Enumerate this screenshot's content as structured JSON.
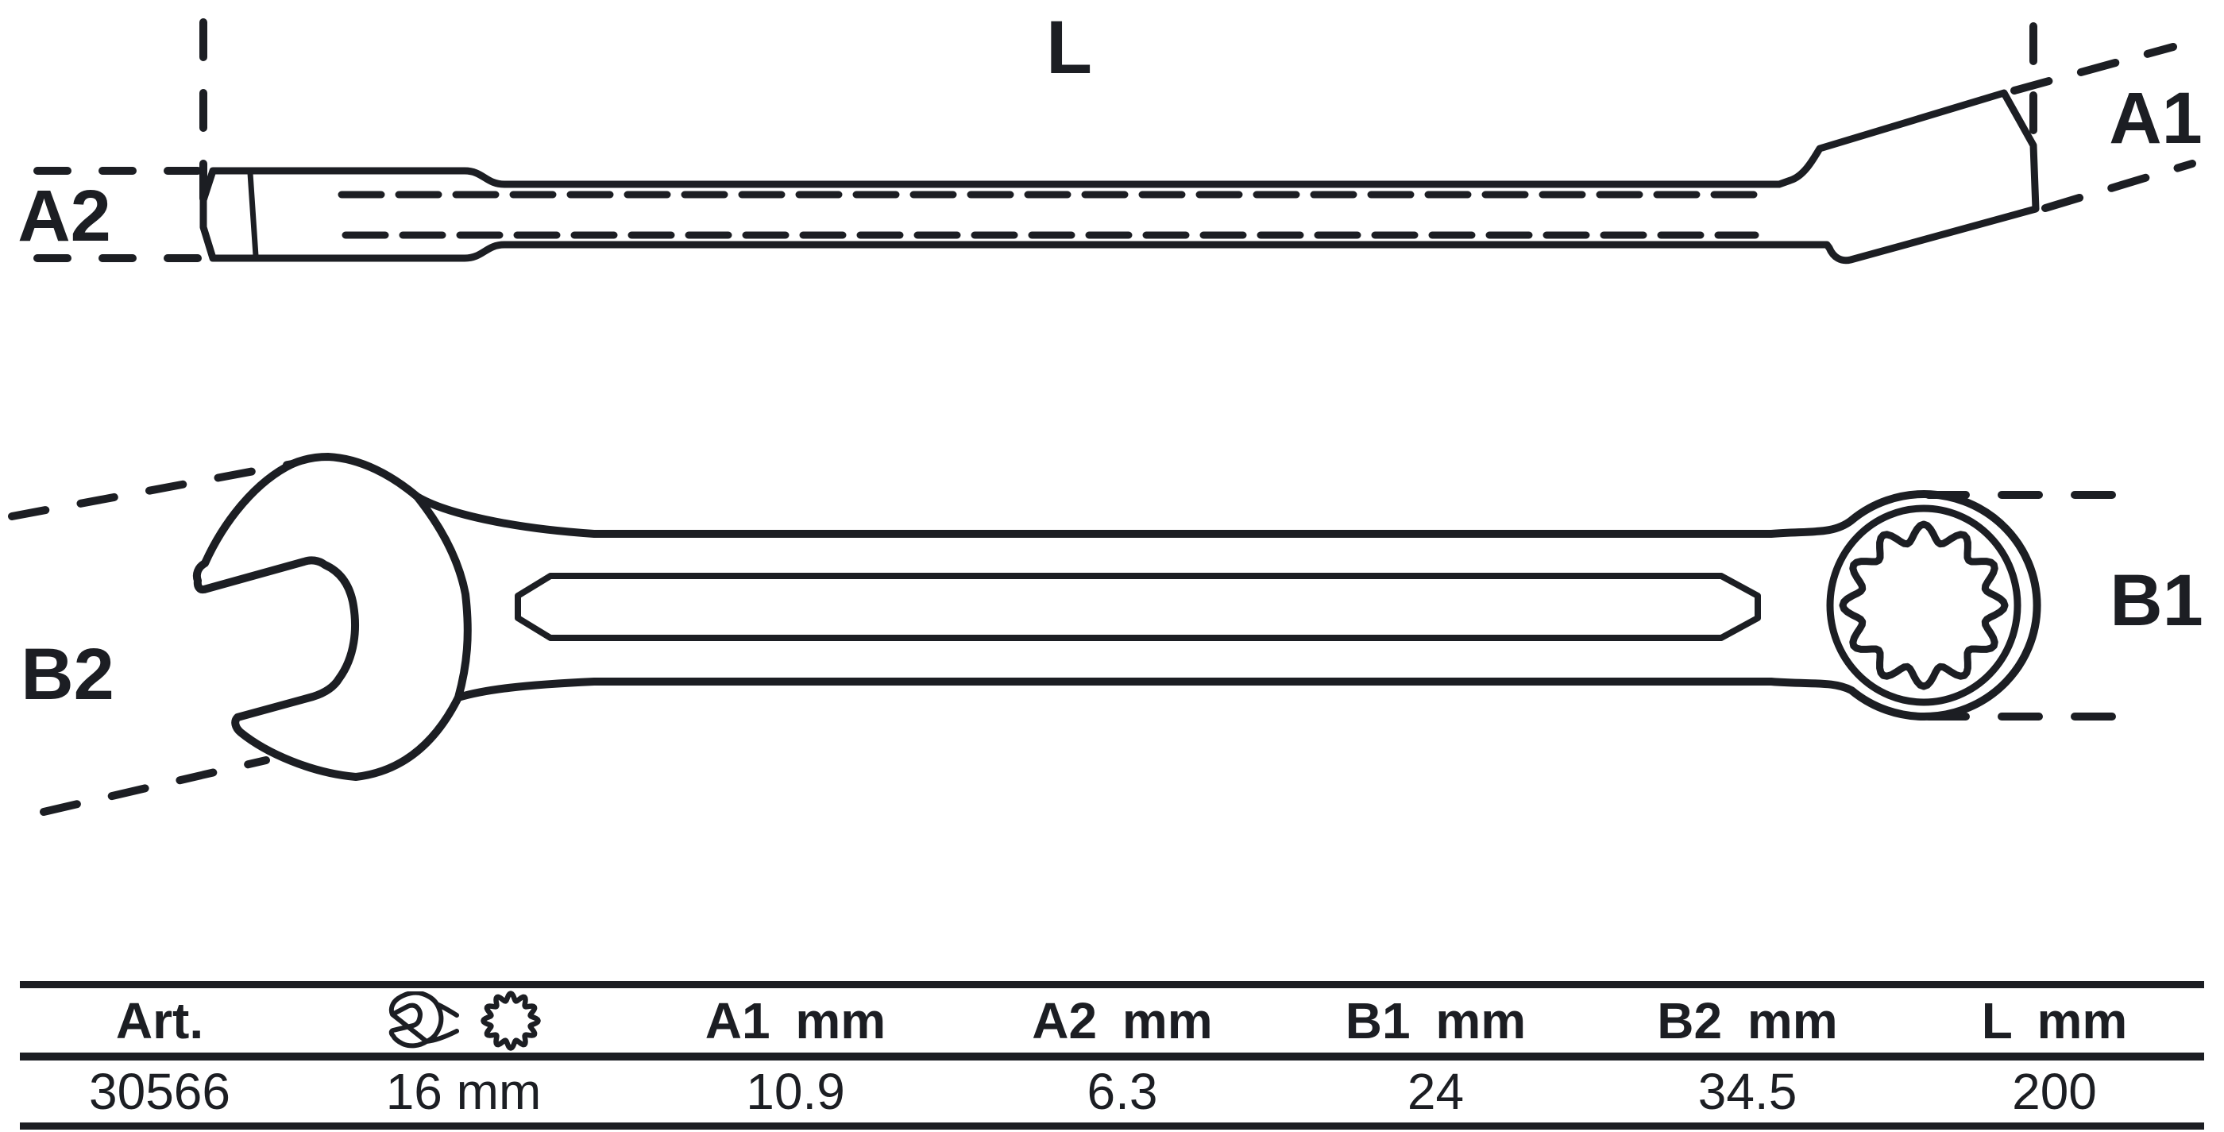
{
  "diagram": {
    "labels": {
      "length": "L",
      "a1": "A1",
      "a2": "A2",
      "b1": "B1",
      "b2": "B2"
    }
  },
  "table": {
    "headers": [
      "Art.",
      "",
      "A1 mm",
      "A2 mm",
      "B1 mm",
      "B2 mm",
      "L mm"
    ],
    "icons": [
      "open-end-wrench-icon",
      "ring-12pt-icon"
    ],
    "row": [
      "30566",
      "16 mm",
      "10.9",
      "6.3",
      "24",
      "34.5",
      "200"
    ]
  },
  "colors": {
    "ink": "#1c1e23",
    "background": "#ffffff"
  }
}
